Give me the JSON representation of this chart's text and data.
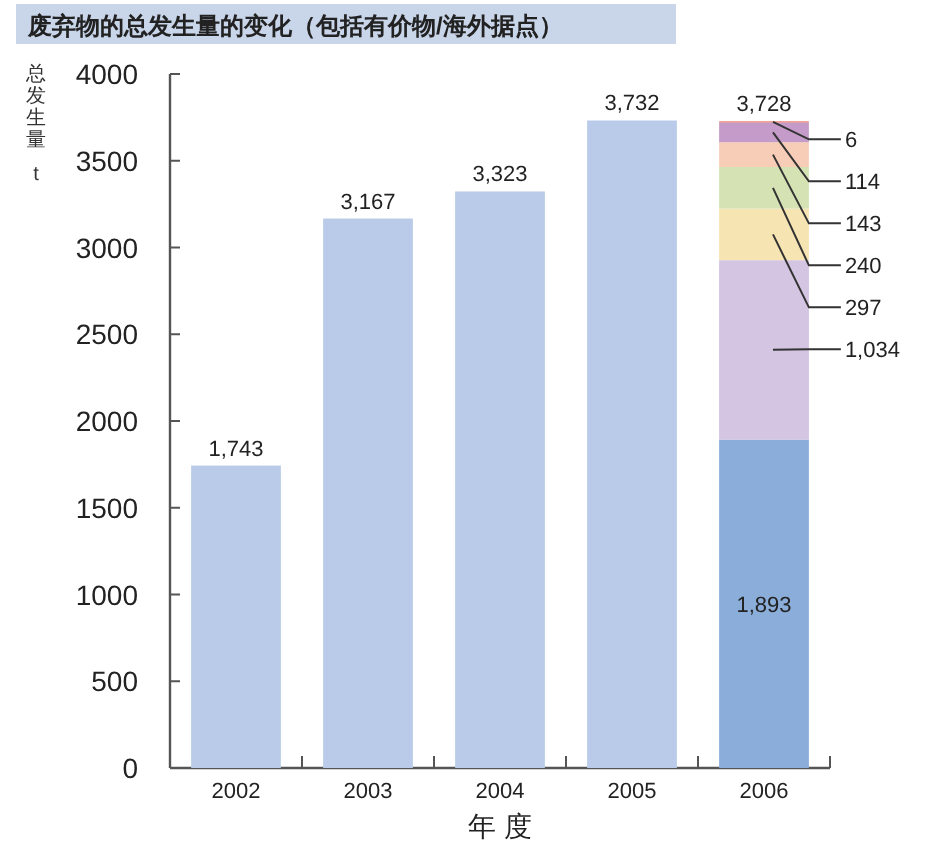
{
  "chart_data": {
    "type": "bar",
    "stacked": true,
    "title": "废弃物的总发生量的变化（包括有价物/海外据点）",
    "ylabel": "总发生量 t",
    "xlabel": "年 度",
    "categories": [
      "2002",
      "2003",
      "2004",
      "2005",
      "2006"
    ],
    "ylim": [
      0,
      4000
    ],
    "yticks": [
      0,
      500,
      1000,
      1500,
      2000,
      2500,
      3000,
      3500,
      4000
    ],
    "series": [
      {
        "colors": [
          "#b9cbe8",
          "#b9cbe8",
          "#b9cbe8",
          "#b9cbe8",
          "#8badd9"
        ],
        "values": [
          1743,
          3167,
          3323,
          3732,
          1893
        ],
        "value_labels": [
          null,
          null,
          null,
          null,
          "1,893"
        ]
      },
      {
        "color": "#d4c5e2",
        "values": [
          null,
          null,
          null,
          null,
          1034
        ],
        "value_labels": [
          null,
          null,
          null,
          null,
          "1,034"
        ]
      },
      {
        "color": "#f6e4b2",
        "values": [
          null,
          null,
          null,
          null,
          297
        ],
        "value_labels": [
          null,
          null,
          null,
          null,
          "297"
        ]
      },
      {
        "color": "#d4e2b4",
        "values": [
          null,
          null,
          null,
          null,
          240
        ],
        "value_labels": [
          null,
          null,
          null,
          null,
          "240"
        ]
      },
      {
        "color": "#f8cdb8",
        "values": [
          null,
          null,
          null,
          null,
          143
        ],
        "value_labels": [
          null,
          null,
          null,
          null,
          "143"
        ]
      },
      {
        "color": "#c59cc9",
        "values": [
          null,
          null,
          null,
          null,
          114
        ],
        "value_labels": [
          null,
          null,
          null,
          null,
          "114"
        ]
      },
      {
        "color": "#e8705c",
        "values": [
          null,
          null,
          null,
          null,
          6
        ],
        "value_labels": [
          null,
          null,
          null,
          null,
          "6"
        ]
      }
    ],
    "totals": [
      "1,743",
      "3,167",
      "3,323",
      "3,732",
      "3,728"
    ]
  }
}
